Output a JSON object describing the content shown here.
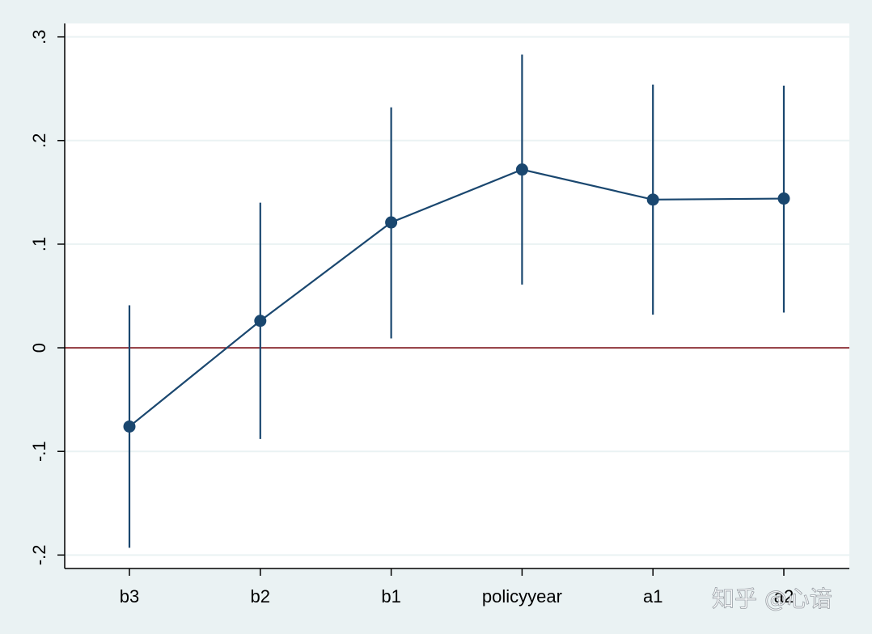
{
  "chart_data": {
    "type": "scatter",
    "categories": [
      "b3",
      "b2",
      "b1",
      "policyyear",
      "a1",
      "a2"
    ],
    "estimates": [
      -0.076,
      0.026,
      0.121,
      0.172,
      0.143,
      0.144
    ],
    "ci_low": [
      -0.193,
      -0.088,
      0.009,
      0.061,
      0.032,
      0.034
    ],
    "ci_high": [
      0.041,
      0.14,
      0.232,
      0.283,
      0.254,
      0.253
    ],
    "connect_points": true,
    "reference_line": 0,
    "yticks": [
      -0.2,
      -0.1,
      0,
      0.1,
      0.2,
      0.3
    ],
    "ytick_labels": [
      "-.2",
      "-.1",
      "0",
      ".1",
      ".2",
      ".3"
    ],
    "ylim": [
      -0.213,
      0.313
    ],
    "grid": true,
    "colors": {
      "background": "#eaf2f3",
      "plot_area": "#ffffff",
      "gridline": "#eaf2f3",
      "series": "#1a476f",
      "reference_line": "#90353b",
      "axis": "#000000"
    }
  },
  "watermark": "知乎 @心谙"
}
